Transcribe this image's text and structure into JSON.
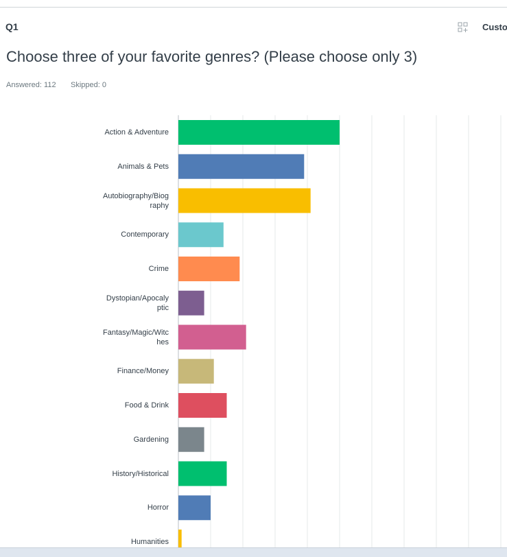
{
  "header": {
    "question_number": "Q1",
    "customize": "Custo",
    "question": "Choose three of your favorite genres? (Please choose only 3)",
    "answered": "Answered: 112",
    "skipped": "Skipped: 0"
  },
  "chart_data": {
    "type": "hbar",
    "categories": [
      "Action & Adventure",
      "Animals & Pets",
      "Autobiography/Biography",
      "Contemporary",
      "Crime",
      "Dystopian/Apocalyptic",
      "Fantasy/Magic/Witches",
      "Finance/Money",
      "Food & Drink",
      "Gardening",
      "History/Historical",
      "Horror",
      "Humanities"
    ],
    "values": [
      50,
      39,
      41,
      14,
      19,
      8,
      21,
      11,
      15,
      8,
      15,
      10,
      1
    ],
    "colors": [
      "#00bf6f",
      "#507cb6",
      "#f9be00",
      "#6bc8cd",
      "#ff8b4f",
      "#7d5e90",
      "#d25f90",
      "#c7b879",
      "#de4f5f",
      "#7b868c",
      "#00bf6f",
      "#507cb6",
      "#f9be00"
    ],
    "xlim": [
      0,
      100
    ],
    "xticks": [
      0,
      10,
      20,
      30,
      40,
      50,
      60,
      70,
      80,
      90,
      100
    ],
    "grid": true
  }
}
